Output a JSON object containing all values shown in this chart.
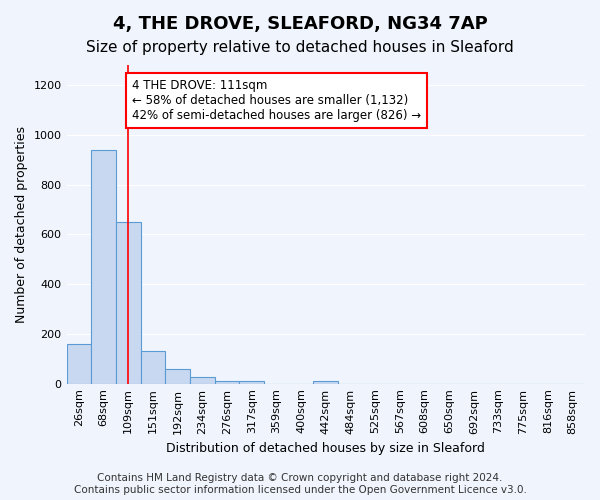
{
  "title": "4, THE DROVE, SLEAFORD, NG34 7AP",
  "subtitle": "Size of property relative to detached houses in Sleaford",
  "xlabel": "Distribution of detached houses by size in Sleaford",
  "ylabel": "Number of detached properties",
  "bin_labels": [
    "26sqm",
    "68sqm",
    "109sqm",
    "151sqm",
    "192sqm",
    "234sqm",
    "276sqm",
    "317sqm",
    "359sqm",
    "400sqm",
    "442sqm",
    "484sqm",
    "525sqm",
    "567sqm",
    "608sqm",
    "650sqm",
    "692sqm",
    "733sqm",
    "775sqm",
    "816sqm",
    "858sqm"
  ],
  "bar_values": [
    160,
    940,
    650,
    130,
    60,
    25,
    10,
    10,
    0,
    0,
    10,
    0,
    0,
    0,
    0,
    0,
    0,
    0,
    0,
    0,
    0
  ],
  "bar_color": "#c8d8f0",
  "bar_edge_color": "#5b9bd5",
  "bar_edge_width": 0.8,
  "red_line_index": 2,
  "ylim": [
    0,
    1280
  ],
  "yticks": [
    0,
    200,
    400,
    600,
    800,
    1000,
    1200
  ],
  "annotation_text": "4 THE DROVE: 111sqm\n← 58% of detached houses are smaller (1,132)\n42% of semi-detached houses are larger (826) →",
  "footer_line1": "Contains HM Land Registry data © Crown copyright and database right 2024.",
  "footer_line2": "Contains public sector information licensed under the Open Government Licence v3.0.",
  "bg_color": "#f0f4fc",
  "grid_color": "#ffffff",
  "title_fontsize": 13,
  "subtitle_fontsize": 11,
  "axis_label_fontsize": 9,
  "tick_fontsize": 8,
  "annotation_fontsize": 8.5,
  "footer_fontsize": 7.5
}
